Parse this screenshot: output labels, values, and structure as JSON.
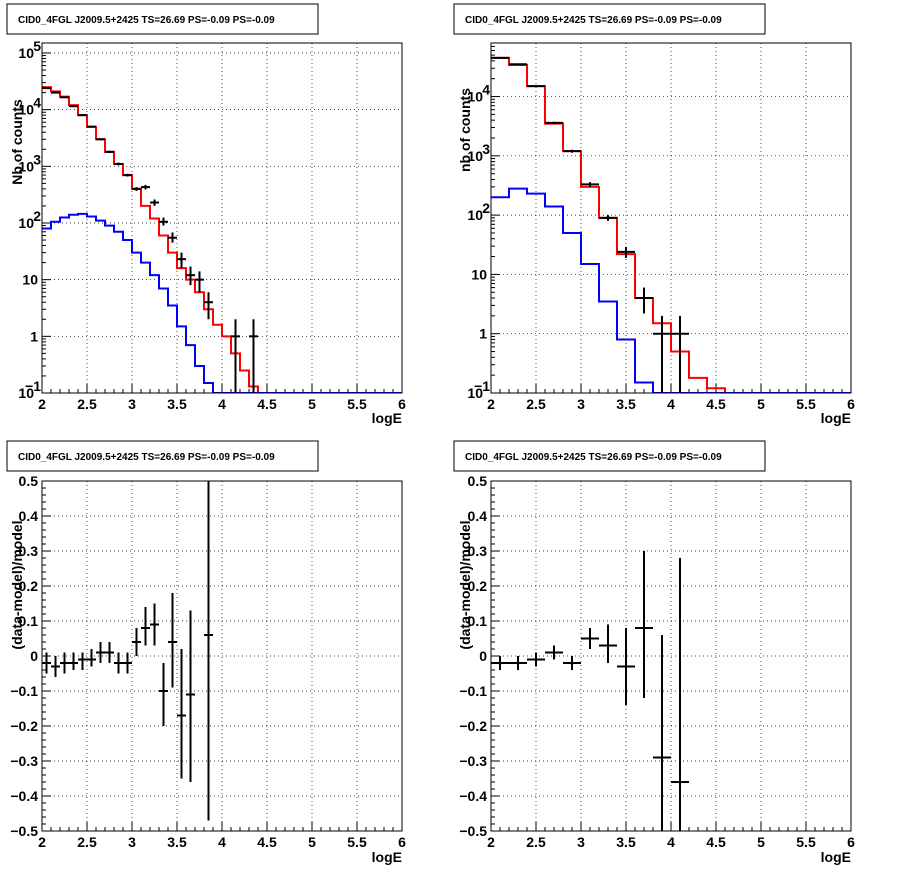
{
  "chart_data": [
    {
      "type": "line",
      "title": "CID0_4FGL J2009.5+2425 TS=26.69 PS=-0.09 PS=-0.09",
      "xlabel": "logE",
      "ylabel": "Nb of counts",
      "xlim": [
        2,
        6
      ],
      "ylim": [
        0.1,
        150000
      ],
      "yscale": "log",
      "xticks": [
        "2",
        "2.5",
        "3",
        "3.5",
        "4",
        "4.5",
        "5",
        "5.5",
        "6"
      ],
      "yticks": [
        {
          "value": 0.1,
          "label": "10",
          "sup": "−1"
        },
        {
          "value": 1,
          "label": "1",
          "sup": ""
        },
        {
          "value": 10,
          "label": "10",
          "sup": ""
        },
        {
          "value": 100,
          "label": "10",
          "sup": "2"
        },
        {
          "value": 1000,
          "label": "10",
          "sup": "3"
        },
        {
          "value": 10000,
          "label": "10",
          "sup": "4"
        },
        {
          "value": 100000,
          "label": "10",
          "sup": "5"
        }
      ],
      "grid": true,
      "bin_edges": [
        2.0,
        2.1,
        2.2,
        2.3,
        2.4,
        2.5,
        2.6,
        2.7,
        2.8,
        2.9,
        3.0,
        3.1,
        3.2,
        3.3,
        3.4,
        3.5,
        3.6,
        3.7,
        3.8,
        3.9,
        4.0,
        4.1,
        4.2,
        4.3,
        4.4,
        4.5,
        6.0
      ],
      "series": [
        {
          "color": "#ff0000",
          "values": [
            25000,
            21000,
            17000,
            12000,
            8000,
            5000,
            3000,
            1800,
            1100,
            700,
            400,
            200,
            120,
            60,
            30,
            16,
            10,
            6,
            3,
            1.6,
            1,
            0.5,
            0.25,
            0.13,
            0.1,
            0.1
          ]
        },
        {
          "color": "#0000ff",
          "values": [
            80,
            105,
            125,
            140,
            145,
            130,
            110,
            90,
            70,
            50,
            30,
            20,
            12,
            7,
            3.5,
            1.5,
            0.7,
            0.3,
            0.15,
            0.1,
            0.1,
            0.1,
            0.1,
            0.1,
            0.1,
            0.1
          ]
        }
      ],
      "points": [
        {
          "x": 2.05,
          "y": 24000,
          "xerr": 0.05,
          "ylo": 23500,
          "yhi": 24500
        },
        {
          "x": 2.15,
          "y": 20000,
          "xerr": 0.05,
          "ylo": 19500,
          "yhi": 20500
        },
        {
          "x": 2.25,
          "y": 16500,
          "xerr": 0.05,
          "ylo": 16000,
          "yhi": 17000
        },
        {
          "x": 2.35,
          "y": 11500,
          "xerr": 0.05,
          "ylo": 11100,
          "yhi": 11900
        },
        {
          "x": 2.45,
          "y": 8000,
          "xerr": 0.05,
          "ylo": 7700,
          "yhi": 8300
        },
        {
          "x": 2.55,
          "y": 5000,
          "xerr": 0.05,
          "ylo": 4800,
          "yhi": 5200
        },
        {
          "x": 2.65,
          "y": 3000,
          "xerr": 0.05,
          "ylo": 2880,
          "yhi": 3120
        },
        {
          "x": 2.75,
          "y": 1800,
          "xerr": 0.05,
          "ylo": 1720,
          "yhi": 1880
        },
        {
          "x": 2.85,
          "y": 1100,
          "xerr": 0.05,
          "ylo": 1040,
          "yhi": 1160
        },
        {
          "x": 2.95,
          "y": 700,
          "xerr": 0.05,
          "ylo": 660,
          "yhi": 740
        },
        {
          "x": 3.05,
          "y": 400,
          "xerr": 0.05,
          "ylo": 370,
          "yhi": 430
        },
        {
          "x": 3.15,
          "y": 430,
          "xerr": 0.05,
          "ylo": 390,
          "yhi": 470
        },
        {
          "x": 3.25,
          "y": 230,
          "xerr": 0.05,
          "ylo": 200,
          "yhi": 260
        },
        {
          "x": 3.35,
          "y": 105,
          "xerr": 0.05,
          "ylo": 90,
          "yhi": 125
        },
        {
          "x": 3.45,
          "y": 55,
          "xerr": 0.05,
          "ylo": 45,
          "yhi": 68
        },
        {
          "x": 3.55,
          "y": 23,
          "xerr": 0.05,
          "ylo": 16,
          "yhi": 30
        },
        {
          "x": 3.65,
          "y": 12,
          "xerr": 0.05,
          "ylo": 8,
          "yhi": 17
        },
        {
          "x": 3.75,
          "y": 10,
          "xerr": 0.05,
          "ylo": 6,
          "yhi": 14
        },
        {
          "x": 3.85,
          "y": 4,
          "xerr": 0.05,
          "ylo": 2,
          "yhi": 6
        },
        {
          "x": 4.15,
          "y": 1,
          "xerr": 0.05,
          "ylo": 0.1,
          "yhi": 2
        },
        {
          "x": 4.35,
          "y": 1,
          "xerr": 0.05,
          "ylo": 0.1,
          "yhi": 2
        }
      ]
    },
    {
      "type": "line",
      "title": "CID0_4FGL J2009.5+2425 TS=26.69 PS=-0.09 PS=-0.09",
      "xlabel": "logE",
      "ylabel": "nb of counts",
      "xlim": [
        2,
        6
      ],
      "ylim": [
        0.1,
        80000
      ],
      "yscale": "log",
      "xticks": [
        "2",
        "2.5",
        "3",
        "3.5",
        "4",
        "4.5",
        "5",
        "5.5",
        "6"
      ],
      "yticks": [
        {
          "value": 0.1,
          "label": "10",
          "sup": "−1"
        },
        {
          "value": 1,
          "label": "1",
          "sup": ""
        },
        {
          "value": 10,
          "label": "10",
          "sup": ""
        },
        {
          "value": 100,
          "label": "10",
          "sup": "2"
        },
        {
          "value": 1000,
          "label": "10",
          "sup": "3"
        },
        {
          "value": 10000,
          "label": "10",
          "sup": "4"
        }
      ],
      "grid": true,
      "bin_edges": [
        2.0,
        2.2,
        2.4,
        2.6,
        2.8,
        3.0,
        3.2,
        3.4,
        3.6,
        3.8,
        4.0,
        4.2,
        4.4,
        4.6,
        6.0
      ],
      "series": [
        {
          "color": "#ff0000",
          "values": [
            45000,
            34000,
            15000,
            3500,
            1200,
            300,
            90,
            22,
            4,
            1.5,
            0.5,
            0.18,
            0.12,
            0.1
          ]
        },
        {
          "color": "#0000ff",
          "values": [
            200,
            280,
            230,
            140,
            50,
            15,
            3.5,
            0.8,
            0.15,
            0.1,
            0.1,
            0.1,
            0.1,
            0.1
          ]
        }
      ],
      "points": [
        {
          "x": 2.1,
          "y": 45000,
          "xerr": 0.1,
          "ylo": 44000,
          "yhi": 46000
        },
        {
          "x": 2.3,
          "y": 35000,
          "xerr": 0.1,
          "ylo": 34000,
          "yhi": 36000
        },
        {
          "x": 2.5,
          "y": 15000,
          "xerr": 0.1,
          "ylo": 14600,
          "yhi": 15400
        },
        {
          "x": 2.7,
          "y": 3600,
          "xerr": 0.1,
          "ylo": 3450,
          "yhi": 3750
        },
        {
          "x": 2.9,
          "y": 1200,
          "xerr": 0.1,
          "ylo": 1130,
          "yhi": 1270
        },
        {
          "x": 3.1,
          "y": 330,
          "xerr": 0.1,
          "ylo": 300,
          "yhi": 360
        },
        {
          "x": 3.3,
          "y": 90,
          "xerr": 0.1,
          "ylo": 80,
          "yhi": 100
        },
        {
          "x": 3.5,
          "y": 24,
          "xerr": 0.1,
          "ylo": 19,
          "yhi": 29
        },
        {
          "x": 3.7,
          "y": 4,
          "xerr": 0.1,
          "ylo": 2.2,
          "yhi": 6
        },
        {
          "x": 3.9,
          "y": 1,
          "xerr": 0.1,
          "ylo": 0.1,
          "yhi": 2
        },
        {
          "x": 4.1,
          "y": 1,
          "xerr": 0.1,
          "ylo": 0.1,
          "yhi": 2
        }
      ]
    },
    {
      "type": "scatter",
      "title": "CID0_4FGL J2009.5+2425 TS=26.69 PS=-0.09 PS=-0.09",
      "xlabel": "logE",
      "ylabel": "(data-model)/model",
      "xlim": [
        2,
        6
      ],
      "ylim": [
        -0.5,
        0.5
      ],
      "yscale": "linear",
      "xticks": [
        "2",
        "2.5",
        "3",
        "3.5",
        "4",
        "4.5",
        "5",
        "5.5",
        "6"
      ],
      "yticks": [
        {
          "value": -0.5,
          "label": "−0.5",
          "sup": ""
        },
        {
          "value": -0.4,
          "label": "−0.4",
          "sup": ""
        },
        {
          "value": -0.3,
          "label": "−0.3",
          "sup": ""
        },
        {
          "value": -0.2,
          "label": "−0.2",
          "sup": ""
        },
        {
          "value": -0.1,
          "label": "−0.1",
          "sup": ""
        },
        {
          "value": 0,
          "label": "0",
          "sup": ""
        },
        {
          "value": 0.1,
          "label": "0.1",
          "sup": ""
        },
        {
          "value": 0.2,
          "label": "0.2",
          "sup": ""
        },
        {
          "value": 0.3,
          "label": "0.3",
          "sup": ""
        },
        {
          "value": 0.4,
          "label": "0.4",
          "sup": ""
        },
        {
          "value": 0.5,
          "label": "0.5",
          "sup": ""
        }
      ],
      "grid": true,
      "points": [
        {
          "x": 2.05,
          "y": -0.02,
          "xerr": 0.05,
          "ylo": -0.05,
          "yhi": 0.01
        },
        {
          "x": 2.15,
          "y": -0.03,
          "xerr": 0.05,
          "ylo": -0.06,
          "yhi": 0.0
        },
        {
          "x": 2.25,
          "y": -0.02,
          "xerr": 0.05,
          "ylo": -0.05,
          "yhi": 0.01
        },
        {
          "x": 2.35,
          "y": -0.02,
          "xerr": 0.05,
          "ylo": -0.04,
          "yhi": 0.01
        },
        {
          "x": 2.45,
          "y": -0.01,
          "xerr": 0.05,
          "ylo": -0.04,
          "yhi": 0.01
        },
        {
          "x": 2.55,
          "y": -0.01,
          "xerr": 0.05,
          "ylo": -0.03,
          "yhi": 0.02
        },
        {
          "x": 2.65,
          "y": 0.01,
          "xerr": 0.05,
          "ylo": -0.02,
          "yhi": 0.04
        },
        {
          "x": 2.75,
          "y": 0.01,
          "xerr": 0.05,
          "ylo": -0.02,
          "yhi": 0.04
        },
        {
          "x": 2.85,
          "y": -0.02,
          "xerr": 0.05,
          "ylo": -0.05,
          "yhi": 0.01
        },
        {
          "x": 2.95,
          "y": -0.02,
          "xerr": 0.05,
          "ylo": -0.05,
          "yhi": 0.01
        },
        {
          "x": 3.05,
          "y": 0.04,
          "xerr": 0.05,
          "ylo": 0.0,
          "yhi": 0.08
        },
        {
          "x": 3.15,
          "y": 0.08,
          "xerr": 0.05,
          "ylo": 0.03,
          "yhi": 0.14
        },
        {
          "x": 3.25,
          "y": 0.09,
          "xerr": 0.05,
          "ylo": 0.03,
          "yhi": 0.15
        },
        {
          "x": 3.35,
          "y": -0.1,
          "xerr": 0.05,
          "ylo": -0.2,
          "yhi": -0.02
        },
        {
          "x": 3.45,
          "y": 0.04,
          "xerr": 0.05,
          "ylo": -0.09,
          "yhi": 0.18
        },
        {
          "x": 3.55,
          "y": -0.17,
          "xerr": 0.05,
          "ylo": -0.35,
          "yhi": 0.02
        },
        {
          "x": 3.65,
          "y": -0.11,
          "xerr": 0.05,
          "ylo": -0.36,
          "yhi": 0.13
        },
        {
          "x": 3.85,
          "y": 0.06,
          "xerr": 0.05,
          "ylo": -0.47,
          "yhi": 0.5
        }
      ]
    },
    {
      "type": "scatter",
      "title": "CID0_4FGL J2009.5+2425 TS=26.69 PS=-0.09 PS=-0.09",
      "xlabel": "logE",
      "ylabel": "(data-model)/model",
      "xlim": [
        2,
        6
      ],
      "ylim": [
        -0.5,
        0.5
      ],
      "yscale": "linear",
      "xticks": [
        "2",
        "2.5",
        "3",
        "3.5",
        "4",
        "4.5",
        "5",
        "5.5",
        "6"
      ],
      "yticks": [
        {
          "value": -0.5,
          "label": "−0.5",
          "sup": ""
        },
        {
          "value": -0.4,
          "label": "−0.4",
          "sup": ""
        },
        {
          "value": -0.3,
          "label": "−0.3",
          "sup": ""
        },
        {
          "value": -0.2,
          "label": "−0.2",
          "sup": ""
        },
        {
          "value": -0.1,
          "label": "−0.1",
          "sup": ""
        },
        {
          "value": 0,
          "label": "0",
          "sup": ""
        },
        {
          "value": 0.1,
          "label": "0.1",
          "sup": ""
        },
        {
          "value": 0.2,
          "label": "0.2",
          "sup": ""
        },
        {
          "value": 0.3,
          "label": "0.3",
          "sup": ""
        },
        {
          "value": 0.4,
          "label": "0.4",
          "sup": ""
        },
        {
          "value": 0.5,
          "label": "0.5",
          "sup": ""
        }
      ],
      "grid": true,
      "points": [
        {
          "x": 2.1,
          "y": -0.02,
          "xerr": 0.1,
          "ylo": -0.04,
          "yhi": 0.0
        },
        {
          "x": 2.3,
          "y": -0.02,
          "xerr": 0.1,
          "ylo": -0.04,
          "yhi": 0.0
        },
        {
          "x": 2.5,
          "y": -0.01,
          "xerr": 0.1,
          "ylo": -0.03,
          "yhi": 0.01
        },
        {
          "x": 2.7,
          "y": 0.01,
          "xerr": 0.1,
          "ylo": -0.01,
          "yhi": 0.03
        },
        {
          "x": 2.9,
          "y": -0.02,
          "xerr": 0.1,
          "ylo": -0.04,
          "yhi": 0.0
        },
        {
          "x": 3.1,
          "y": 0.05,
          "xerr": 0.1,
          "ylo": 0.02,
          "yhi": 0.08
        },
        {
          "x": 3.3,
          "y": 0.03,
          "xerr": 0.1,
          "ylo": -0.02,
          "yhi": 0.09
        },
        {
          "x": 3.5,
          "y": -0.03,
          "xerr": 0.1,
          "ylo": -0.14,
          "yhi": 0.08
        },
        {
          "x": 3.7,
          "y": 0.08,
          "xerr": 0.1,
          "ylo": -0.12,
          "yhi": 0.3
        },
        {
          "x": 3.9,
          "y": -0.29,
          "xerr": 0.1,
          "ylo": -0.5,
          "yhi": 0.06
        },
        {
          "x": 4.1,
          "y": -0.36,
          "xerr": 0.1,
          "ylo": -0.5,
          "yhi": 0.28
        }
      ]
    }
  ]
}
